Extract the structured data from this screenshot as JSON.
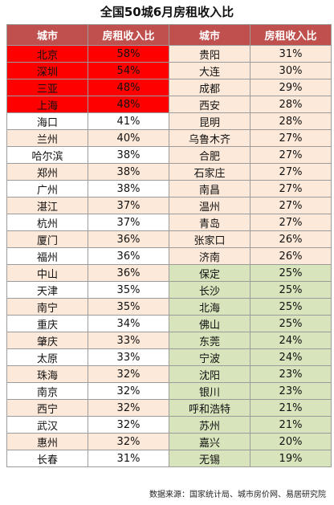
{
  "title": "全国50城6月房租收入比",
  "headers": [
    "城市",
    "房租收入比",
    "城市",
    "房租收入比"
  ],
  "rows": [
    {
      "left": {
        "city": "北京",
        "ratio": "58%",
        "bg": "red"
      },
      "right": {
        "city": "贵阳",
        "ratio": "31%",
        "bg": "peach"
      }
    },
    {
      "left": {
        "city": "深圳",
        "ratio": "54%",
        "bg": "red"
      },
      "right": {
        "city": "大连",
        "ratio": "30%",
        "bg": "peach"
      }
    },
    {
      "left": {
        "city": "三亚",
        "ratio": "48%",
        "bg": "red"
      },
      "right": {
        "city": "成都",
        "ratio": "29%",
        "bg": "peach"
      }
    },
    {
      "left": {
        "city": "上海",
        "ratio": "48%",
        "bg": "red"
      },
      "right": {
        "city": "西安",
        "ratio": "28%",
        "bg": "peach"
      }
    },
    {
      "left": {
        "city": "海口",
        "ratio": "41%",
        "bg": "white"
      },
      "right": {
        "city": "昆明",
        "ratio": "28%",
        "bg": "peach"
      }
    },
    {
      "left": {
        "city": "兰州",
        "ratio": "40%",
        "bg": "peach"
      },
      "right": {
        "city": "乌鲁木齐",
        "ratio": "27%",
        "bg": "peach"
      }
    },
    {
      "left": {
        "city": "哈尔滨",
        "ratio": "38%",
        "bg": "white"
      },
      "right": {
        "city": "合肥",
        "ratio": "27%",
        "bg": "peach"
      }
    },
    {
      "left": {
        "city": "郑州",
        "ratio": "38%",
        "bg": "peach"
      },
      "right": {
        "city": "石家庄",
        "ratio": "27%",
        "bg": "peach"
      }
    },
    {
      "left": {
        "city": "广州",
        "ratio": "38%",
        "bg": "white"
      },
      "right": {
        "city": "南昌",
        "ratio": "27%",
        "bg": "peach"
      }
    },
    {
      "left": {
        "city": "湛江",
        "ratio": "37%",
        "bg": "peach"
      },
      "right": {
        "city": "温州",
        "ratio": "27%",
        "bg": "peach"
      }
    },
    {
      "left": {
        "city": "杭州",
        "ratio": "37%",
        "bg": "white"
      },
      "right": {
        "city": "青岛",
        "ratio": "27%",
        "bg": "peach"
      }
    },
    {
      "left": {
        "city": "厦门",
        "ratio": "36%",
        "bg": "peach"
      },
      "right": {
        "city": "张家口",
        "ratio": "26%",
        "bg": "peach"
      }
    },
    {
      "left": {
        "city": "福州",
        "ratio": "36%",
        "bg": "white"
      },
      "right": {
        "city": "济南",
        "ratio": "26%",
        "bg": "peach"
      }
    },
    {
      "left": {
        "city": "中山",
        "ratio": "36%",
        "bg": "peach"
      },
      "right": {
        "city": "保定",
        "ratio": "25%",
        "bg": "green"
      }
    },
    {
      "left": {
        "city": "天津",
        "ratio": "35%",
        "bg": "white"
      },
      "right": {
        "city": "长沙",
        "ratio": "25%",
        "bg": "green"
      }
    },
    {
      "left": {
        "city": "南宁",
        "ratio": "35%",
        "bg": "peach"
      },
      "right": {
        "city": "北海",
        "ratio": "25%",
        "bg": "green"
      }
    },
    {
      "left": {
        "city": "重庆",
        "ratio": "34%",
        "bg": "white"
      },
      "right": {
        "city": "佛山",
        "ratio": "25%",
        "bg": "green"
      }
    },
    {
      "left": {
        "city": "肇庆",
        "ratio": "33%",
        "bg": "peach"
      },
      "right": {
        "city": "东莞",
        "ratio": "24%",
        "bg": "green"
      }
    },
    {
      "left": {
        "city": "太原",
        "ratio": "33%",
        "bg": "white"
      },
      "right": {
        "city": "宁波",
        "ratio": "24%",
        "bg": "green"
      }
    },
    {
      "left": {
        "city": "珠海",
        "ratio": "32%",
        "bg": "peach"
      },
      "right": {
        "city": "沈阳",
        "ratio": "23%",
        "bg": "green"
      }
    },
    {
      "left": {
        "city": "南京",
        "ratio": "32%",
        "bg": "white"
      },
      "right": {
        "city": "银川",
        "ratio": "23%",
        "bg": "green"
      }
    },
    {
      "left": {
        "city": "西宁",
        "ratio": "32%",
        "bg": "peach"
      },
      "right": {
        "city": "呼和浩特",
        "ratio": "21%",
        "bg": "green"
      }
    },
    {
      "left": {
        "city": "武汉",
        "ratio": "32%",
        "bg": "white"
      },
      "right": {
        "city": "苏州",
        "ratio": "21%",
        "bg": "green"
      }
    },
    {
      "left": {
        "city": "惠州",
        "ratio": "32%",
        "bg": "peach"
      },
      "right": {
        "city": "嘉兴",
        "ratio": "20%",
        "bg": "green"
      }
    },
    {
      "left": {
        "city": "长春",
        "ratio": "31%",
        "bg": "white"
      },
      "right": {
        "city": "无锡",
        "ratio": "19%",
        "bg": "green"
      }
    }
  ],
  "source": "数据来源：国家统计局、城市房价网、易居研究院"
}
